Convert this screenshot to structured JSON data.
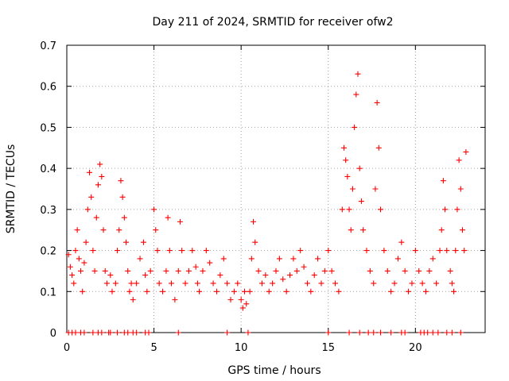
{
  "chart_data": {
    "type": "scatter",
    "title": "Day 211 of 2024, SRMTID for receiver ofw2",
    "xlabel": "GPS time / hours",
    "ylabel": "SRMTID / TECUs",
    "xlim": [
      0,
      24
    ],
    "ylim": [
      0,
      0.7
    ],
    "x_ticks": [
      0,
      5,
      10,
      15,
      20
    ],
    "y_ticks": [
      0,
      0.1,
      0.2,
      0.3,
      0.4,
      0.5,
      0.6,
      0.7
    ],
    "x_tick_labels": [
      "0",
      "5",
      "10",
      "15",
      "20"
    ],
    "y_tick_labels": [
      "0",
      "0.1",
      "0.2",
      "0.3",
      "0.4",
      "0.5",
      "0.6",
      "0.7"
    ],
    "grid": true,
    "marker": "+",
    "color": "#ff0000",
    "series": [
      {
        "name": "SRMTID",
        "points": [
          [
            0.1,
            0.19
          ],
          [
            0.2,
            0.16
          ],
          [
            0.3,
            0.14
          ],
          [
            0.4,
            0.12
          ],
          [
            0.5,
            0.2
          ],
          [
            0.6,
            0.25
          ],
          [
            0.7,
            0.18
          ],
          [
            0.8,
            0.15
          ],
          [
            0.9,
            0.1
          ],
          [
            1.0,
            0.17
          ],
          [
            1.1,
            0.22
          ],
          [
            1.2,
            0.3
          ],
          [
            1.3,
            0.39
          ],
          [
            1.4,
            0.33
          ],
          [
            1.5,
            0.2
          ],
          [
            1.6,
            0.15
          ],
          [
            1.7,
            0.28
          ],
          [
            1.8,
            0.36
          ],
          [
            1.9,
            0.41
          ],
          [
            2.0,
            0.38
          ],
          [
            2.1,
            0.25
          ],
          [
            2.2,
            0.15
          ],
          [
            2.3,
            0.12
          ],
          [
            2.5,
            0.14
          ],
          [
            2.6,
            0.1
          ],
          [
            2.8,
            0.12
          ],
          [
            2.9,
            0.2
          ],
          [
            3.0,
            0.25
          ],
          [
            3.1,
            0.37
          ],
          [
            3.2,
            0.33
          ],
          [
            3.3,
            0.28
          ],
          [
            3.4,
            0.22
          ],
          [
            3.5,
            0.15
          ],
          [
            3.6,
            0.1
          ],
          [
            3.7,
            0.12
          ],
          [
            3.8,
            0.08
          ],
          [
            4.0,
            0.12
          ],
          [
            4.2,
            0.18
          ],
          [
            4.4,
            0.22
          ],
          [
            4.5,
            0.14
          ],
          [
            4.6,
            0.1
          ],
          [
            4.8,
            0.15
          ],
          [
            5.0,
            0.3
          ],
          [
            5.1,
            0.25
          ],
          [
            5.2,
            0.2
          ],
          [
            5.3,
            0.12
          ],
          [
            5.5,
            0.1
          ],
          [
            5.7,
            0.15
          ],
          [
            5.8,
            0.28
          ],
          [
            5.9,
            0.2
          ],
          [
            6.0,
            0.12
          ],
          [
            6.2,
            0.08
          ],
          [
            6.4,
            0.15
          ],
          [
            6.5,
            0.27
          ],
          [
            6.6,
            0.2
          ],
          [
            6.8,
            0.12
          ],
          [
            7.0,
            0.15
          ],
          [
            7.2,
            0.2
          ],
          [
            7.4,
            0.16
          ],
          [
            7.5,
            0.12
          ],
          [
            7.6,
            0.1
          ],
          [
            7.8,
            0.15
          ],
          [
            8.0,
            0.2
          ],
          [
            8.2,
            0.17
          ],
          [
            8.4,
            0.12
          ],
          [
            8.6,
            0.1
          ],
          [
            8.8,
            0.14
          ],
          [
            9.0,
            0.18
          ],
          [
            9.2,
            0.12
          ],
          [
            9.4,
            0.08
          ],
          [
            9.6,
            0.1
          ],
          [
            9.8,
            0.12
          ],
          [
            10.0,
            0.08
          ],
          [
            10.1,
            0.06
          ],
          [
            10.2,
            0.1
          ],
          [
            10.3,
            0.07
          ],
          [
            10.5,
            0.1
          ],
          [
            10.6,
            0.18
          ],
          [
            10.7,
            0.27
          ],
          [
            10.8,
            0.22
          ],
          [
            11.0,
            0.15
          ],
          [
            11.2,
            0.12
          ],
          [
            11.4,
            0.14
          ],
          [
            11.6,
            0.1
          ],
          [
            11.8,
            0.12
          ],
          [
            12.0,
            0.15
          ],
          [
            12.2,
            0.18
          ],
          [
            12.4,
            0.13
          ],
          [
            12.6,
            0.1
          ],
          [
            12.8,
            0.14
          ],
          [
            13.0,
            0.18
          ],
          [
            13.2,
            0.15
          ],
          [
            13.4,
            0.2
          ],
          [
            13.6,
            0.16
          ],
          [
            13.8,
            0.12
          ],
          [
            14.0,
            0.1
          ],
          [
            14.2,
            0.14
          ],
          [
            14.4,
            0.18
          ],
          [
            14.6,
            0.12
          ],
          [
            14.8,
            0.15
          ],
          [
            15.0,
            0.2
          ],
          [
            15.2,
            0.15
          ],
          [
            15.4,
            0.12
          ],
          [
            15.6,
            0.1
          ],
          [
            15.8,
            0.3
          ],
          [
            15.9,
            0.45
          ],
          [
            16.0,
            0.42
          ],
          [
            16.1,
            0.38
          ],
          [
            16.2,
            0.3
          ],
          [
            16.3,
            0.25
          ],
          [
            16.4,
            0.35
          ],
          [
            16.5,
            0.5
          ],
          [
            16.6,
            0.58
          ],
          [
            16.7,
            0.63
          ],
          [
            16.8,
            0.4
          ],
          [
            16.9,
            0.32
          ],
          [
            17.0,
            0.25
          ],
          [
            17.2,
            0.2
          ],
          [
            17.4,
            0.15
          ],
          [
            17.6,
            0.12
          ],
          [
            17.7,
            0.35
          ],
          [
            17.8,
            0.56
          ],
          [
            17.9,
            0.45
          ],
          [
            18.0,
            0.3
          ],
          [
            18.2,
            0.2
          ],
          [
            18.4,
            0.15
          ],
          [
            18.6,
            0.1
          ],
          [
            18.8,
            0.12
          ],
          [
            19.0,
            0.18
          ],
          [
            19.2,
            0.22
          ],
          [
            19.4,
            0.15
          ],
          [
            19.6,
            0.1
          ],
          [
            19.8,
            0.12
          ],
          [
            20.0,
            0.2
          ],
          [
            20.2,
            0.15
          ],
          [
            20.4,
            0.12
          ],
          [
            20.6,
            0.1
          ],
          [
            20.8,
            0.15
          ],
          [
            21.0,
            0.18
          ],
          [
            21.2,
            0.12
          ],
          [
            21.4,
            0.2
          ],
          [
            21.5,
            0.25
          ],
          [
            21.6,
            0.37
          ],
          [
            21.7,
            0.3
          ],
          [
            21.8,
            0.2
          ],
          [
            22.0,
            0.15
          ],
          [
            22.1,
            0.12
          ],
          [
            22.2,
            0.1
          ],
          [
            22.3,
            0.2
          ],
          [
            22.4,
            0.3
          ],
          [
            22.5,
            0.42
          ],
          [
            22.6,
            0.35
          ],
          [
            22.7,
            0.25
          ],
          [
            22.8,
            0.2
          ],
          [
            22.9,
            0.44
          ]
        ],
        "zero_points": [
          0.1,
          0.3,
          0.5,
          0.8,
          1.0,
          1.5,
          1.8,
          2.0,
          2.4,
          2.5,
          2.9,
          3.3,
          3.5,
          3.8,
          4.0,
          4.5,
          4.7,
          6.4,
          9.2,
          10.4,
          15.0,
          16.2,
          16.8,
          17.3,
          17.6,
          18.0,
          18.6,
          19.2,
          19.4,
          20.3,
          20.5,
          20.7,
          21.0,
          21.3,
          21.8,
          22.1,
          22.6
        ]
      }
    ]
  }
}
